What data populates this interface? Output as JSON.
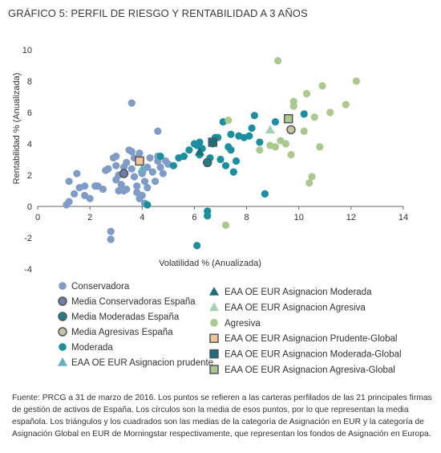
{
  "header": {
    "title": "GRÁFICO 5: PERFIL DE RIESGO Y RENTABILIDAD A 3 AÑOS"
  },
  "footnote": "Fuente: PRCG a 31 de marzo de 2016. Los puntos se refieren a las carteras perfilados de las 21 principales firmas de gestión de activos de España. Los círculos son la media de esos puntos, por lo que representan la media española. Los triángulos y los cuadrados son las medias de la categoría de Asignación en EUR y la categoría de Asignación Global en EUR de Morningstar respectivamente, que representan los fondos de Asignación en Europa.",
  "colors": {
    "conservadora": "#7f9cc8",
    "moderada": "#1a8fa0",
    "agresiva": "#a9c98e",
    "media_conservadora": "#6b7fa8",
    "media_moderada": "#1c7f8c",
    "media_agresiva": "#c5c3a6",
    "eaa_prudente": "#65b1c3",
    "eaa_moderada": "#1a6f7d",
    "eaa_agresiva": "#9fd3b6",
    "global_prudente": "#f2c49a",
    "global_moderada": "#1a6f7d",
    "global_agresiva": "#a9c98e",
    "marker_outline": "#555555"
  },
  "chart_data": {
    "type": "scatter",
    "title": "GRÁFICO 5: PERFIL DE RIESGO Y RENTABILIDAD A 3 AÑOS",
    "xlabel": "Volatilidad % (Anualizada)",
    "ylabel": "Rentabilidad % (Anualizada)",
    "xlim": [
      0,
      14
    ],
    "ylim": [
      -4,
      10
    ],
    "xticks": [
      0,
      2,
      4,
      6,
      8,
      10,
      12,
      14
    ],
    "yticks": [
      -4,
      -2,
      0,
      2,
      4,
      6,
      8,
      10
    ],
    "grid": false,
    "series": [
      {
        "name": "Conservadora",
        "marker": "circle",
        "points": [
          [
            1.1,
            0.1
          ],
          [
            1.2,
            0.3
          ],
          [
            1.2,
            1.6
          ],
          [
            1.4,
            0.8
          ],
          [
            1.5,
            2.1
          ],
          [
            1.6,
            1.2
          ],
          [
            1.8,
            0.7
          ],
          [
            1.8,
            1.3
          ],
          [
            2.0,
            0.5
          ],
          [
            2.2,
            1.3
          ],
          [
            2.3,
            1.3
          ],
          [
            2.5,
            1.1
          ],
          [
            2.6,
            2.3
          ],
          [
            2.7,
            2.4
          ],
          [
            2.8,
            -1.6
          ],
          [
            2.8,
            -2.1
          ],
          [
            2.9,
            3.1
          ],
          [
            3.0,
            3.2
          ],
          [
            3.0,
            2.6
          ],
          [
            3.0,
            1.7
          ],
          [
            3.1,
            2.0
          ],
          [
            3.2,
            1.4
          ],
          [
            3.3,
            1.0
          ],
          [
            3.3,
            2.5
          ],
          [
            3.4,
            2.8
          ],
          [
            3.5,
            3.6
          ],
          [
            3.6,
            3.5
          ],
          [
            3.6,
            2.4
          ],
          [
            3.7,
            3.1
          ],
          [
            3.7,
            1.9
          ],
          [
            3.8,
            1.3
          ],
          [
            3.8,
            0.9
          ],
          [
            3.9,
            2.9
          ],
          [
            3.9,
            3.4
          ],
          [
            4.0,
            2.1
          ],
          [
            4.0,
            0.7
          ],
          [
            4.1,
            1.6
          ],
          [
            4.1,
            0.2
          ],
          [
            4.2,
            2.5
          ],
          [
            4.2,
            1.2
          ],
          [
            4.3,
            3.1
          ],
          [
            4.4,
            2.2
          ],
          [
            4.5,
            1.6
          ],
          [
            4.6,
            2.9
          ],
          [
            4.6,
            3.2
          ],
          [
            4.7,
            2.5
          ],
          [
            4.8,
            2.1
          ],
          [
            4.9,
            2.9
          ],
          [
            5.0,
            2.7
          ],
          [
            3.6,
            6.6
          ],
          [
            4.6,
            4.8
          ],
          [
            3.1,
            1.0
          ],
          [
            3.4,
            1.1
          ],
          [
            3.9,
            0.5
          ]
        ]
      },
      {
        "name": "Moderada",
        "marker": "circle",
        "points": [
          [
            4.2,
            0.1
          ],
          [
            4.7,
            3.2
          ],
          [
            5.2,
            2.6
          ],
          [
            5.4,
            3.1
          ],
          [
            5.6,
            3.2
          ],
          [
            5.8,
            3.6
          ],
          [
            6.0,
            4.0
          ],
          [
            6.1,
            3.9
          ],
          [
            6.1,
            -2.5
          ],
          [
            6.2,
            3.3
          ],
          [
            6.2,
            4.1
          ],
          [
            6.3,
            3.7
          ],
          [
            6.5,
            -0.3
          ],
          [
            6.5,
            -0.6
          ],
          [
            6.6,
            3.1
          ],
          [
            6.7,
            4.0
          ],
          [
            6.8,
            4.4
          ],
          [
            6.9,
            4.4
          ],
          [
            7.0,
            3.0
          ],
          [
            7.1,
            5.4
          ],
          [
            7.2,
            2.6
          ],
          [
            7.3,
            3.8
          ],
          [
            7.4,
            4.6
          ],
          [
            7.4,
            3.6
          ],
          [
            7.5,
            2.2
          ],
          [
            7.6,
            2.9
          ],
          [
            7.7,
            4.5
          ],
          [
            7.9,
            4.4
          ],
          [
            8.1,
            4.5
          ],
          [
            8.2,
            5.0
          ],
          [
            8.3,
            5.8
          ],
          [
            8.5,
            4.1
          ],
          [
            8.7,
            0.8
          ],
          [
            9.1,
            5.4
          ],
          [
            10.2,
            5.9
          ]
        ]
      },
      {
        "name": "Agresiva",
        "marker": "circle",
        "points": [
          [
            7.2,
            -1.2
          ],
          [
            7.3,
            5.5
          ],
          [
            8.9,
            3.9
          ],
          [
            9.1,
            3.8
          ],
          [
            9.2,
            9.3
          ],
          [
            9.3,
            4.2
          ],
          [
            9.6,
            5.6
          ],
          [
            9.7,
            3.3
          ],
          [
            9.8,
            6.7
          ],
          [
            9.8,
            6.4
          ],
          [
            10.2,
            4.8
          ],
          [
            10.3,
            7.2
          ],
          [
            10.4,
            1.5
          ],
          [
            10.5,
            1.9
          ],
          [
            10.6,
            5.7
          ],
          [
            10.8,
            3.8
          ],
          [
            10.9,
            7.7
          ],
          [
            11.2,
            6.0
          ],
          [
            11.8,
            6.5
          ],
          [
            12.2,
            8.0
          ],
          [
            8.5,
            3.6
          ],
          [
            9.5,
            4.0
          ]
        ]
      },
      {
        "name": "Media Conservadoras España",
        "marker": "circle-outlined",
        "points": [
          [
            3.3,
            2.1
          ]
        ]
      },
      {
        "name": "Media Moderadas España",
        "marker": "circle-outlined",
        "points": [
          [
            6.5,
            2.8
          ]
        ]
      },
      {
        "name": "Media Agresivas España",
        "marker": "circle-outlined",
        "points": [
          [
            9.7,
            4.9
          ]
        ]
      },
      {
        "name": "EAA OE EUR Asignacion prudente",
        "marker": "triangle",
        "points": [
          [
            4.0,
            2.4
          ]
        ]
      },
      {
        "name": "EAA OE EUR Asignacion Moderada",
        "marker": "triangle",
        "points": [
          [
            6.2,
            3.5
          ]
        ]
      },
      {
        "name": "EAA OE EUR Asignacion Agresiva",
        "marker": "triangle",
        "points": [
          [
            8.9,
            4.9
          ]
        ]
      },
      {
        "name": "EAA OE EUR Asignacion Prudente-Global",
        "marker": "square",
        "points": [
          [
            3.9,
            2.9
          ]
        ]
      },
      {
        "name": "EAA OE EUR Asignacion Moderada-Global",
        "marker": "square",
        "points": [
          [
            6.7,
            4.1
          ]
        ]
      },
      {
        "name": "EAA OE EUR Asignacion Agresiva-Global",
        "marker": "square",
        "points": [
          [
            9.6,
            5.6
          ]
        ]
      }
    ],
    "legend": {
      "placement": "bottom",
      "left_column": [
        {
          "label": "Conservadora",
          "series": "Conservadora"
        },
        {
          "label": "Media Conservadoras España",
          "series": "Media Conservadoras España"
        },
        {
          "label": "Media Moderadas España",
          "series": "Media Moderadas España"
        },
        {
          "label": "Media Agresivas España",
          "series": "Media Agresivas España"
        },
        {
          "label": "Moderada",
          "series": "Moderada"
        },
        {
          "label": "EAA OE EUR Asignacion prudente",
          "series": "EAA OE EUR Asignacion prudente"
        }
      ],
      "right_column": [
        {
          "label": "EAA OE EUR Asignacion Moderada",
          "series": "EAA OE EUR Asignacion Moderada"
        },
        {
          "label": "EAA OE EUR Asignacion Agresiva",
          "series": "EAA OE EUR Asignacion Agresiva"
        },
        {
          "label": "Agresiva",
          "series": "Agresiva"
        },
        {
          "label": "EAA OE EUR Asignacion Prudente-Global",
          "series": "EAA OE EUR Asignacion Prudente-Global"
        },
        {
          "label": "EAA OE EUR Asignacion Moderada-Global",
          "series": "EAA OE EUR Asignacion Moderada-Global"
        },
        {
          "label": "EAA OE EUR Asignacion Agresiva-Global",
          "series": "EAA OE EUR Asignacion Agresiva-Global"
        }
      ]
    }
  }
}
